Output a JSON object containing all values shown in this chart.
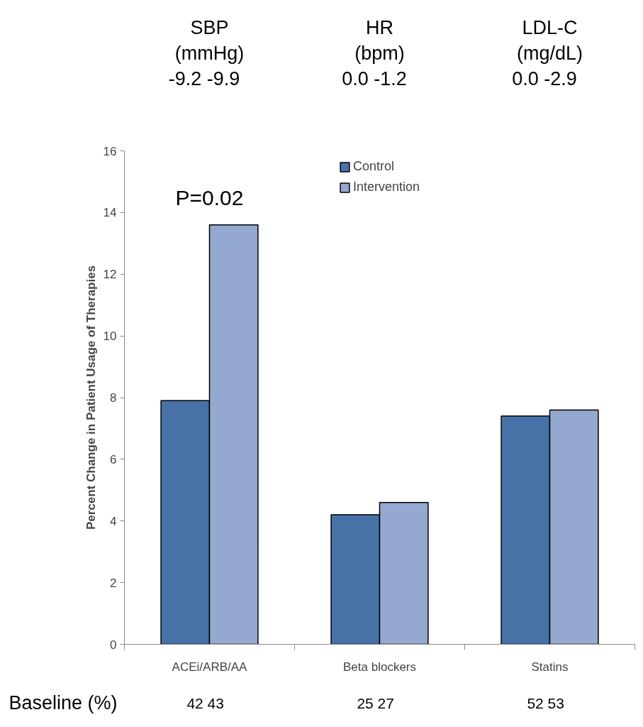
{
  "chart_data": {
    "type": "bar",
    "ylabel": "Percent Change in Patient Usage of Therapies",
    "categories": [
      "ACEi/ARB/AA",
      "Beta blockers",
      "Statins"
    ],
    "series": [
      {
        "name": "Control",
        "color": "#4672a8",
        "values": [
          7.9,
          4.2,
          7.4
        ]
      },
      {
        "name": "Intervention",
        "color": "#95a9d0",
        "values": [
          13.6,
          4.6,
          7.6
        ]
      }
    ],
    "ylim": [
      0,
      16
    ],
    "yticks": [
      0,
      2,
      4,
      6,
      8,
      10,
      12,
      14,
      16
    ],
    "grid": false,
    "legend": "top",
    "annotations": [
      "SBP\n(mmHg)\n-9.2   -9.9",
      "HR\n(bpm)\n0.0   -1.2",
      "LDL-C\n(mg/dL)\n0.0   -2.9",
      "P=0.02",
      "Baseline (%)",
      "42   43",
      "25   27",
      "52   53"
    ]
  }
}
